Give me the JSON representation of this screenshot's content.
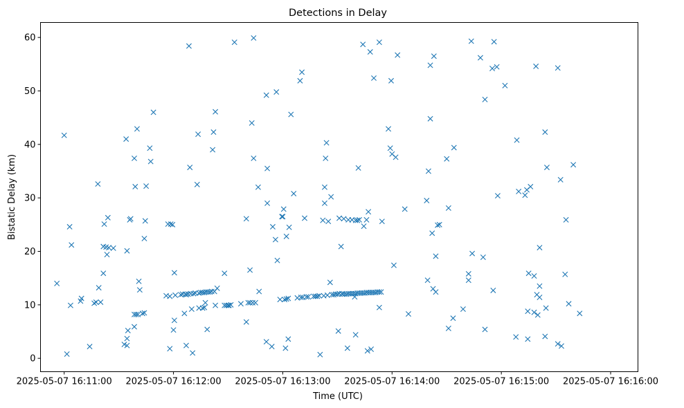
{
  "chart_data": {
    "type": "scatter",
    "title": "Detections in Delay",
    "xlabel": "Time (UTC)",
    "ylabel": "Bistatic Delay (km)",
    "x_unit": "seconds after 2025-05-07 16:11:00 UTC",
    "xlim": [
      -13,
      315
    ],
    "ylim": [
      -2.5,
      62.8
    ],
    "x_ticks": [
      {
        "value": 0,
        "label": "2025-05-07 16:11:00"
      },
      {
        "value": 60,
        "label": "2025-05-07 16:12:00"
      },
      {
        "value": 120,
        "label": "2025-05-07 16:13:00"
      },
      {
        "value": 180,
        "label": "2025-05-07 16:14:00"
      },
      {
        "value": 240,
        "label": "2025-05-07 16:15:00"
      },
      {
        "value": 300,
        "label": "2025-05-07 16:16:00"
      }
    ],
    "y_ticks": [
      {
        "value": 0,
        "label": "0"
      },
      {
        "value": 10,
        "label": "10"
      },
      {
        "value": 20,
        "label": "20"
      },
      {
        "value": 30,
        "label": "30"
      },
      {
        "value": 40,
        "label": "40"
      },
      {
        "value": 50,
        "label": "50"
      },
      {
        "value": 60,
        "label": "60"
      }
    ],
    "marker": "x",
    "color": "#1f77b4",
    "grid": false,
    "points": [
      [
        -4,
        14.0
      ],
      [
        0,
        41.7
      ],
      [
        1.5,
        0.8
      ],
      [
        3,
        24.6
      ],
      [
        3.5,
        9.9
      ],
      [
        4,
        21.2
      ],
      [
        9,
        10.7
      ],
      [
        9.5,
        11.2
      ],
      [
        14,
        2.2
      ],
      [
        16.5,
        10.3
      ],
      [
        17.5,
        10.5
      ],
      [
        18.5,
        32.6
      ],
      [
        19,
        13.2
      ],
      [
        20,
        10.5
      ],
      [
        21.5,
        20.9
      ],
      [
        21.5,
        15.9
      ],
      [
        22,
        25.1
      ],
      [
        23,
        20.8
      ],
      [
        23.5,
        19.4
      ],
      [
        24,
        26.3
      ],
      [
        24.5,
        20.7
      ],
      [
        27,
        20.6
      ],
      [
        33,
        2.6
      ],
      [
        34,
        41.0
      ],
      [
        34.5,
        2.4
      ],
      [
        34.5,
        3.7
      ],
      [
        34.5,
        20.1
      ],
      [
        35,
        5.2
      ],
      [
        36,
        25.9
      ],
      [
        36.5,
        26.1
      ],
      [
        38.5,
        5.9
      ],
      [
        38.5,
        8.2
      ],
      [
        38.5,
        37.4
      ],
      [
        39,
        32.1
      ],
      [
        39.5,
        8.2
      ],
      [
        40,
        42.9
      ],
      [
        40.5,
        8.2
      ],
      [
        41,
        14.4
      ],
      [
        41.5,
        12.8
      ],
      [
        43,
        8.4
      ],
      [
        44,
        8.5
      ],
      [
        44,
        22.4
      ],
      [
        44.5,
        25.7
      ],
      [
        45,
        32.2
      ],
      [
        47,
        39.3
      ],
      [
        47.5,
        36.8
      ],
      [
        49,
        46.0
      ],
      [
        56,
        11.7
      ],
      [
        57,
        25.1
      ],
      [
        58,
        11.6
      ],
      [
        58,
        1.8
      ],
      [
        58.5,
        25.1
      ],
      [
        59.5,
        25.0
      ],
      [
        60,
        5.3
      ],
      [
        60.5,
        7.1
      ],
      [
        60.5,
        16.0
      ],
      [
        61,
        11.8
      ],
      [
        64,
        11.9
      ],
      [
        65,
        12.0
      ],
      [
        66,
        8.4
      ],
      [
        66.5,
        12.0
      ],
      [
        67,
        11.9
      ],
      [
        67,
        2.4
      ],
      [
        68,
        12.0
      ],
      [
        68.5,
        58.4
      ],
      [
        69,
        35.7
      ],
      [
        69.5,
        12.1
      ],
      [
        70,
        9.2
      ],
      [
        70.5,
        1.0
      ],
      [
        71,
        12.1
      ],
      [
        72,
        12.2
      ],
      [
        73,
        32.5
      ],
      [
        73.5,
        41.9
      ],
      [
        74,
        12.2
      ],
      [
        74,
        9.4
      ],
      [
        75,
        12.3
      ],
      [
        76,
        9.4
      ],
      [
        76,
        12.3
      ],
      [
        77,
        12.3
      ],
      [
        77,
        9.5
      ],
      [
        77.5,
        10.4
      ],
      [
        78,
        12.4
      ],
      [
        78.5,
        5.4
      ],
      [
        79,
        12.4
      ],
      [
        80,
        12.4
      ],
      [
        81,
        12.5
      ],
      [
        81.5,
        39.0
      ],
      [
        82,
        42.3
      ],
      [
        82.5,
        12.5
      ],
      [
        83,
        9.9
      ],
      [
        83,
        46.1
      ],
      [
        84,
        13.1
      ],
      [
        88,
        15.9
      ],
      [
        88,
        9.9
      ],
      [
        89,
        9.9
      ],
      [
        90,
        9.9
      ],
      [
        90.5,
        9.9
      ],
      [
        91.5,
        10.0
      ],
      [
        93.5,
        59.1
      ],
      [
        97,
        10.2
      ],
      [
        100,
        26.1
      ],
      [
        100,
        6.8
      ],
      [
        101,
        10.4
      ],
      [
        102,
        16.5
      ],
      [
        102,
        10.4
      ],
      [
        103,
        44.0
      ],
      [
        103.5,
        10.4
      ],
      [
        104,
        37.4
      ],
      [
        104,
        59.9
      ],
      [
        105,
        10.4
      ],
      [
        106.5,
        32.0
      ],
      [
        107,
        12.5
      ],
      [
        111,
        49.2
      ],
      [
        111,
        3.1
      ],
      [
        111.5,
        35.5
      ],
      [
        111.5,
        29.0
      ],
      [
        114,
        2.2
      ],
      [
        114.5,
        24.6
      ],
      [
        116,
        22.2
      ],
      [
        116.5,
        49.8
      ],
      [
        117,
        18.3
      ],
      [
        118.5,
        11.0
      ],
      [
        119.5,
        26.5
      ],
      [
        120,
        26.5
      ],
      [
        120.5,
        27.9
      ],
      [
        121,
        11.0
      ],
      [
        121.5,
        1.9
      ],
      [
        122,
        11.1
      ],
      [
        122,
        22.8
      ],
      [
        123,
        11.2
      ],
      [
        123,
        3.6
      ],
      [
        123.5,
        24.5
      ],
      [
        124.5,
        45.6
      ],
      [
        126,
        30.8
      ],
      [
        128,
        11.3
      ],
      [
        129.5,
        51.9
      ],
      [
        130,
        11.4
      ],
      [
        130.5,
        53.5
      ],
      [
        131,
        11.4
      ],
      [
        132,
        26.2
      ],
      [
        133,
        11.5
      ],
      [
        134,
        11.5
      ],
      [
        137,
        11.6
      ],
      [
        138,
        11.6
      ],
      [
        139,
        11.6
      ],
      [
        140,
        11.7
      ],
      [
        140.5,
        0.7
      ],
      [
        142,
        25.8
      ],
      [
        142.5,
        11.7
      ],
      [
        143,
        32.0
      ],
      [
        143,
        29.0
      ],
      [
        143.5,
        37.4
      ],
      [
        144,
        40.3
      ],
      [
        144.5,
        11.8
      ],
      [
        145,
        25.6
      ],
      [
        146,
        14.2
      ],
      [
        146.5,
        30.2
      ],
      [
        147,
        11.9
      ],
      [
        148,
        11.9
      ],
      [
        149,
        12.0
      ],
      [
        150,
        12.0
      ],
      [
        150.5,
        5.1
      ],
      [
        151,
        12.1
      ],
      [
        151,
        26.2
      ],
      [
        152,
        20.9
      ],
      [
        152.5,
        12.1
      ],
      [
        153,
        12.0
      ],
      [
        153.5,
        26.1
      ],
      [
        154,
        12.0
      ],
      [
        155,
        12.0
      ],
      [
        155.5,
        1.9
      ],
      [
        156,
        12.1
      ],
      [
        156,
        25.9
      ],
      [
        157,
        12.1
      ],
      [
        158,
        12.1
      ],
      [
        158,
        25.9
      ],
      [
        159,
        12.1
      ],
      [
        159.5,
        11.5
      ],
      [
        160,
        12.1
      ],
      [
        160,
        4.4
      ],
      [
        160,
        25.8
      ],
      [
        161,
        12.2
      ],
      [
        161,
        25.8
      ],
      [
        161.5,
        35.6
      ],
      [
        162,
        12.2
      ],
      [
        162,
        25.9
      ],
      [
        163,
        12.2
      ],
      [
        164,
        12.2
      ],
      [
        164,
        58.7
      ],
      [
        164.5,
        24.7
      ],
      [
        165,
        12.2
      ],
      [
        166,
        12.3
      ],
      [
        166,
        25.9
      ],
      [
        166.5,
        1.4
      ],
      [
        167,
        12.3
      ],
      [
        167,
        27.4
      ],
      [
        168,
        12.3
      ],
      [
        168,
        57.3
      ],
      [
        168.5,
        1.7
      ],
      [
        169,
        12.3
      ],
      [
        170,
        12.3
      ],
      [
        170,
        52.4
      ],
      [
        171,
        12.3
      ],
      [
        172,
        12.4
      ],
      [
        173,
        12.4
      ],
      [
        173,
        59.1
      ],
      [
        173,
        9.5
      ],
      [
        174,
        12.4
      ],
      [
        174.5,
        25.6
      ],
      [
        178,
        42.9
      ],
      [
        179,
        39.3
      ],
      [
        179.5,
        51.9
      ],
      [
        180,
        38.2
      ],
      [
        181,
        17.4
      ],
      [
        182,
        37.6
      ],
      [
        183,
        56.7
      ],
      [
        187,
        27.9
      ],
      [
        189,
        8.3
      ],
      [
        199,
        29.5
      ],
      [
        199.5,
        14.6
      ],
      [
        200,
        35.0
      ],
      [
        201,
        54.8
      ],
      [
        201,
        44.8
      ],
      [
        202,
        23.4
      ],
      [
        202.5,
        13.0
      ],
      [
        203,
        56.5
      ],
      [
        204,
        12.4
      ],
      [
        204,
        19.1
      ],
      [
        205,
        24.9
      ],
      [
        206,
        25.0
      ],
      [
        210,
        37.3
      ],
      [
        211,
        5.6
      ],
      [
        211,
        28.1
      ],
      [
        213.5,
        7.5
      ],
      [
        214,
        39.4
      ],
      [
        219,
        9.2
      ],
      [
        222,
        15.8
      ],
      [
        222,
        14.6
      ],
      [
        223.5,
        59.3
      ],
      [
        224,
        19.6
      ],
      [
        228.5,
        56.2
      ],
      [
        230,
        18.9
      ],
      [
        231,
        5.4
      ],
      [
        231,
        48.4
      ],
      [
        235,
        54.2
      ],
      [
        235.5,
        12.7
      ],
      [
        236,
        59.2
      ],
      [
        237.5,
        54.5
      ],
      [
        238,
        30.4
      ],
      [
        242,
        51.0
      ],
      [
        248,
        4.0
      ],
      [
        248.5,
        40.8
      ],
      [
        249.5,
        31.2
      ],
      [
        253,
        30.5
      ],
      [
        254,
        31.5
      ],
      [
        254.5,
        8.8
      ],
      [
        254.5,
        3.6
      ],
      [
        255,
        15.9
      ],
      [
        256,
        32.1
      ],
      [
        258,
        15.4
      ],
      [
        258,
        8.6
      ],
      [
        259,
        54.6
      ],
      [
        259.5,
        11.9
      ],
      [
        260,
        8.1
      ],
      [
        261,
        11.4
      ],
      [
        261,
        13.5
      ],
      [
        261,
        20.7
      ],
      [
        264,
        42.3
      ],
      [
        264,
        4.1
      ],
      [
        264.5,
        9.4
      ],
      [
        265,
        35.7
      ],
      [
        271,
        54.3
      ],
      [
        271,
        2.7
      ],
      [
        272.5,
        33.4
      ],
      [
        273,
        2.3
      ],
      [
        275,
        15.7
      ],
      [
        275.5,
        25.9
      ],
      [
        277,
        10.2
      ],
      [
        279.5,
        36.2
      ],
      [
        283,
        8.4
      ]
    ]
  }
}
